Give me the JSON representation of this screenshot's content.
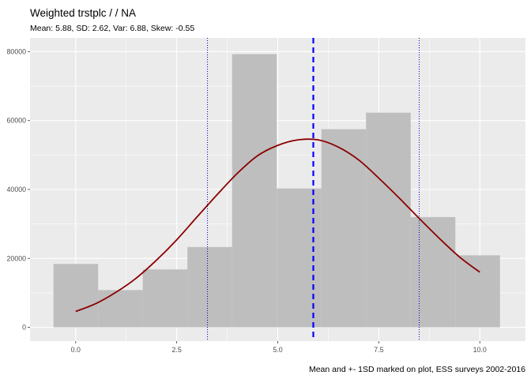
{
  "chart_data": {
    "type": "bar",
    "title": "Weighted  trstplc /  / NA",
    "subtitle": "Mean: 5.88, SD: 2.62, Var: 6.88, Skew: -0.55",
    "caption": "Mean and +- 1SD marked on plot, ESS surveys 2002-2016",
    "xlabel": "",
    "ylabel": "",
    "xlim": [
      -1.13,
      11.13
    ],
    "ylim": [
      -4000,
      84000
    ],
    "x_ticks": [
      0,
      2.5,
      5,
      7.5,
      10
    ],
    "x_tick_labels": [
      "0.0",
      "2.5",
      "5.0",
      "7.5",
      "10.0"
    ],
    "y_ticks": [
      0,
      20000,
      40000,
      60000,
      80000
    ],
    "y_tick_labels": [
      "0",
      "20000",
      "40000",
      "60000",
      "80000"
    ],
    "bin_edges": [
      -0.55,
      0.555,
      1.66,
      2.765,
      3.87,
      4.975,
      6.08,
      7.185,
      8.29,
      9.395,
      10.5
    ],
    "values": [
      18400,
      10800,
      16800,
      23300,
      79300,
      40300,
      57500,
      62300,
      32000,
      20900
    ],
    "bar_color": "#bebebe",
    "mean": 5.88,
    "sd_low": 3.26,
    "sd_high": 8.5,
    "mean_line_color": "#0000ff",
    "sd_line_color": "#0000cd",
    "density_curve": {
      "color": "#8b0000",
      "x": [
        0,
        0.5,
        1,
        1.5,
        2,
        2.5,
        3,
        3.5,
        4,
        4.5,
        5,
        5.5,
        6,
        6.5,
        7,
        7.5,
        8,
        8.5,
        9,
        9.5,
        10
      ],
      "y": [
        4600,
        6900,
        10200,
        14300,
        19500,
        25400,
        32000,
        38500,
        44700,
        49800,
        52800,
        54400,
        54400,
        52300,
        48600,
        43300,
        37600,
        31600,
        25800,
        20400,
        16000
      ]
    },
    "grid": true,
    "panel_background": "#ebebeb"
  }
}
